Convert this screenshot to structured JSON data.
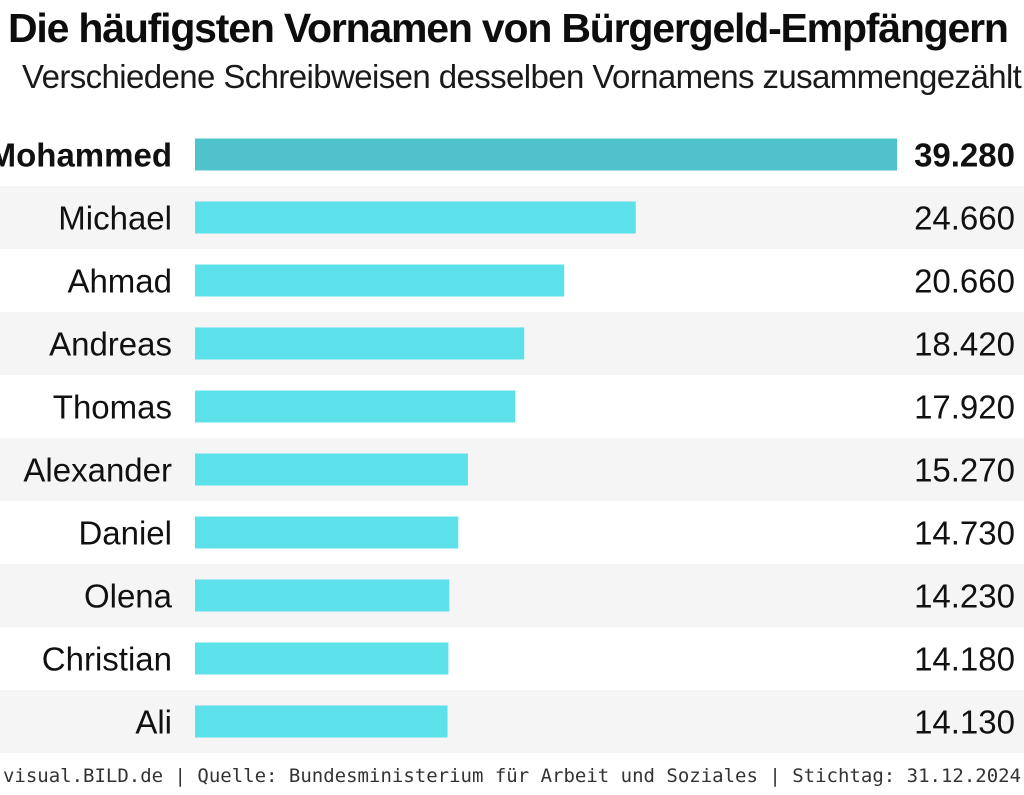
{
  "header": {
    "title": "Die häufigsten Vornamen von Bürgergeld-Empfängern",
    "subtitle": "Verschiedene Schreibweisen desselben Vornamens zusammengezählt"
  },
  "footer": {
    "text": "visual.BILD.de | Quelle: Bundesministerium für Arbeit und Soziales | Stichtag: 31.12.2024"
  },
  "colors": {
    "bar": "#5ce0ea",
    "bar_highlight": "#4fc3cb",
    "row_stripe": "#f4f5f4"
  },
  "chart_data": {
    "type": "bar",
    "orientation": "horizontal",
    "title": "Die häufigsten Vornamen von Bürgergeld-Empfängern",
    "subtitle": "Verschiedene Schreibweisen desselben Vornamens zusammengezählt",
    "categories": [
      "Mohammed",
      "Michael",
      "Ahmad",
      "Andreas",
      "Thomas",
      "Alexander",
      "Daniel",
      "Olena",
      "Christian",
      "Ali"
    ],
    "values": [
      39280,
      24660,
      20660,
      18420,
      17920,
      15270,
      14730,
      14230,
      14180,
      14130
    ],
    "value_labels": [
      "39.280",
      "24.660",
      "20.660",
      "18.420",
      "17.920",
      "15.270",
      "14.730",
      "14.230",
      "14.180",
      "14.130"
    ],
    "highlight_index": 0,
    "xlim": [
      0,
      39280
    ],
    "xlabel": "",
    "ylabel": "",
    "grid": false
  }
}
